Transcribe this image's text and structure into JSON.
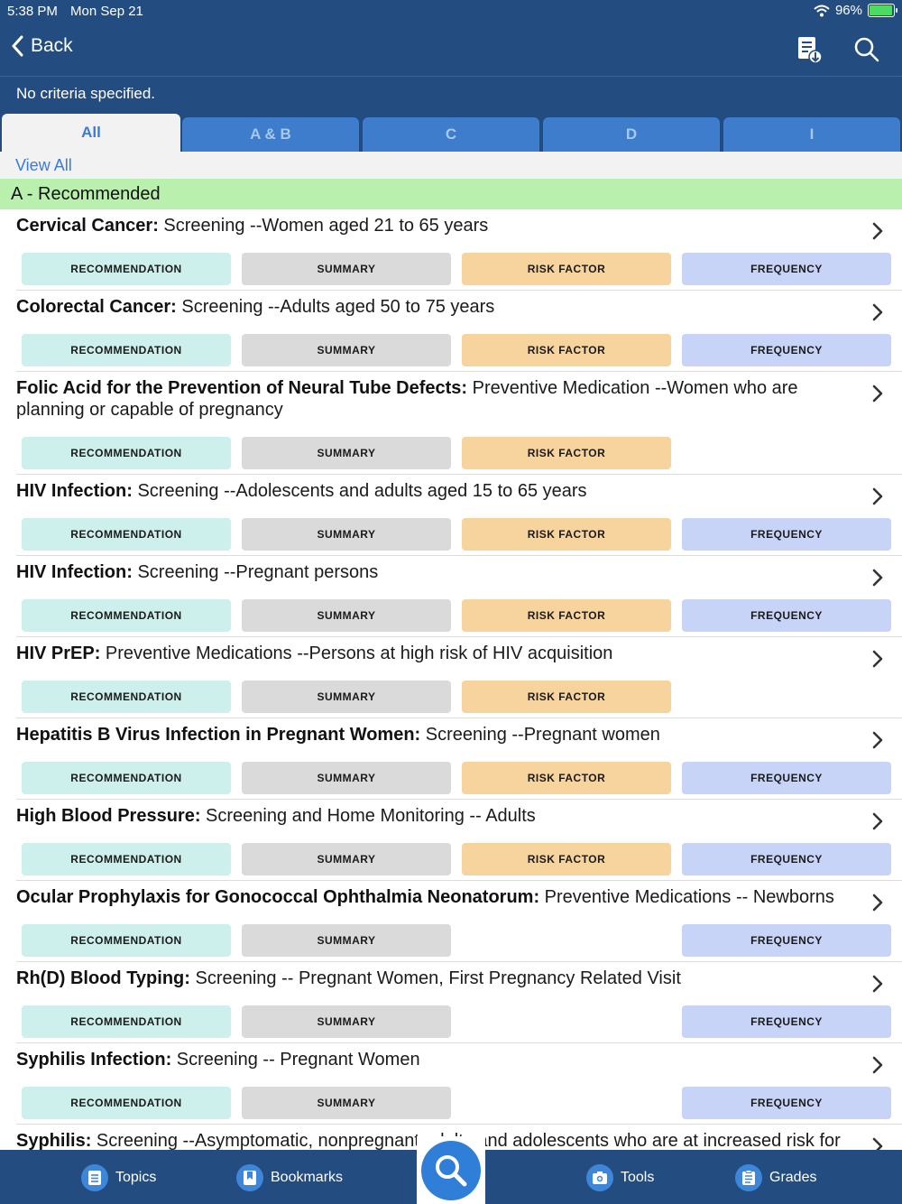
{
  "status_bar": {
    "time": "5:38 PM",
    "date": "Mon Sep 21",
    "battery": "96%",
    "battery_level": 0.96
  },
  "nav": {
    "back_label": "Back",
    "right_icons": [
      "download-document-icon",
      "search-icon"
    ]
  },
  "criteria_text": "No criteria specified.",
  "tabs": [
    {
      "label": "All",
      "active": true
    },
    {
      "label": "A & B",
      "active": false
    },
    {
      "label": "C",
      "active": false
    },
    {
      "label": "D",
      "active": false
    },
    {
      "label": "I",
      "active": false
    }
  ],
  "view_all_label": "View All",
  "section_header": "A - Recommended",
  "pill_labels": {
    "recommendation": "RECOMMENDATION",
    "summary": "SUMMARY",
    "risk_factor": "RISK FACTOR",
    "frequency": "FREQUENCY"
  },
  "items": [
    {
      "bold": "Cervical Cancer:",
      "rest": " Screening --Women aged 21 to 65 years",
      "risk": true,
      "freq": true
    },
    {
      "bold": "Colorectal Cancer:",
      "rest": " Screening --Adults aged 50 to 75 years",
      "risk": true,
      "freq": true
    },
    {
      "bold": "Folic Acid for the Prevention of Neural Tube Defects:",
      "rest": " Preventive Medication --Women who are planning or capable of pregnancy",
      "risk": true,
      "freq": false
    },
    {
      "bold": "HIV Infection:",
      "rest": " Screening --Adolescents and adults aged 15 to 65 years",
      "risk": true,
      "freq": true
    },
    {
      "bold": "HIV Infection:",
      "rest": " Screening --Pregnant persons",
      "risk": true,
      "freq": true
    },
    {
      "bold": "HIV PrEP:",
      "rest": " Preventive Medications --Persons at high risk of HIV acquisition",
      "risk": true,
      "freq": false
    },
    {
      "bold": "Hepatitis B Virus Infection in Pregnant Women:",
      "rest": " Screening --Pregnant women",
      "risk": true,
      "freq": true
    },
    {
      "bold": "High Blood Pressure:",
      "rest": " Screening and Home Monitoring -- Adults",
      "risk": true,
      "freq": true
    },
    {
      "bold": "Ocular Prophylaxis for Gonococcal Ophthalmia Neonatorum:",
      "rest": " Preventive Medications -- Newborns",
      "risk": false,
      "freq": true
    },
    {
      "bold": "Rh(D) Blood Typing:",
      "rest": " Screening -- Pregnant Women, First Pregnancy Related Visit",
      "risk": false,
      "freq": true
    },
    {
      "bold": "Syphilis Infection:",
      "rest": " Screening -- Pregnant Women",
      "risk": false,
      "freq": true
    },
    {
      "bold": "Syphilis:",
      "rest": " Screening --Asymptomatic, nonpregnant adults and adolescents who are at increased risk for",
      "risk": false,
      "freq": false
    }
  ],
  "bottom_tabs": [
    {
      "label": "Topics",
      "icon": "topics-list-icon"
    },
    {
      "label": "Bookmarks",
      "icon": "bookmark-icon"
    },
    {
      "label": "Tools",
      "icon": "tools-camera-icon"
    },
    {
      "label": "Grades",
      "icon": "grades-clipboard-icon"
    }
  ],
  "center_button_icon": "search-icon"
}
